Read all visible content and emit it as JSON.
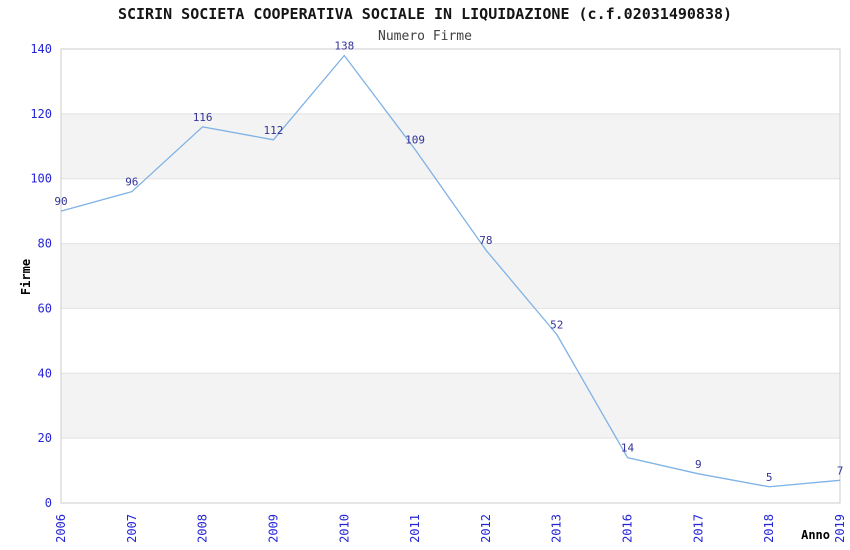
{
  "chart_data": {
    "type": "line",
    "title": "SCIRIN SOCIETA COOPERATIVA SOCIALE IN LIQUIDAZIONE (c.f.02031490838)",
    "subtitle": "Numero Firme",
    "xlabel": "Anno",
    "ylabel": "Firme",
    "categories": [
      "2006",
      "2007",
      "2008",
      "2009",
      "2010",
      "2011",
      "2012",
      "2013",
      "2016",
      "2017",
      "2018",
      "2019"
    ],
    "series": [
      {
        "name": "Numero Firme",
        "values": [
          90,
          96,
          116,
          112,
          138,
          109,
          78,
          52,
          14,
          9,
          5,
          7
        ]
      }
    ],
    "ylim": [
      0,
      140
    ],
    "ytick_step": 20,
    "yticks": [
      0,
      20,
      40,
      60,
      80,
      100,
      120,
      140
    ],
    "grid": "horizontal",
    "background_bands": "alternating gray/white every 20 units, gray on 20-40, 60-80, 100-120",
    "legend": "none",
    "markers": "none",
    "data_labels": "above each point"
  },
  "colors": {
    "line": "#7fb2e5",
    "tick_label": "#2525d6",
    "data_label": "#333399",
    "band_gray": "#f3f3f3",
    "grid_line": "#e2e2e2",
    "plot_border": "#cccccc",
    "title": "#151515",
    "subtitle": "#404040",
    "axis_title": "#000000",
    "background": "#ffffff"
  }
}
